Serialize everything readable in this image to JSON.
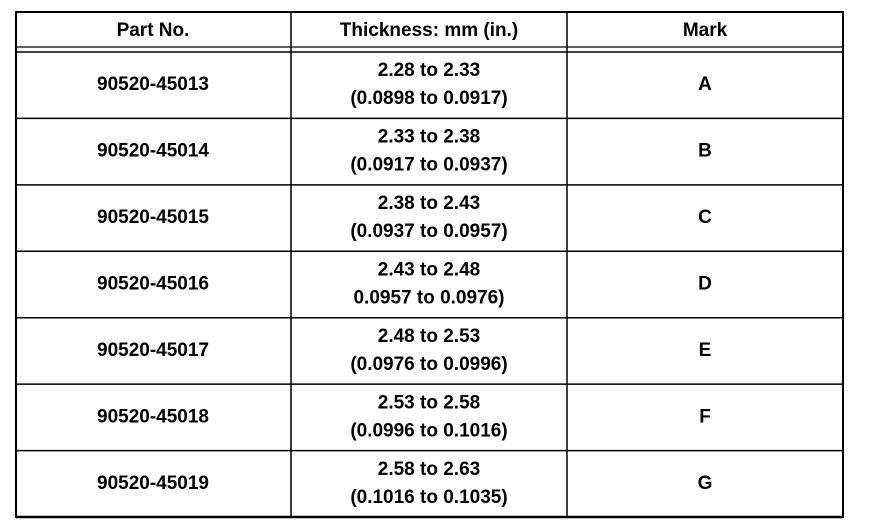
{
  "table": {
    "headers": [
      "Part No.",
      "Thickness: mm (in.)",
      "Mark"
    ],
    "rows": [
      {
        "part": "90520-45013",
        "thickness_mm": "2.28 to 2.33",
        "thickness_in": "(0.0898 to 0.0917)",
        "mark": "A"
      },
      {
        "part": "90520-45014",
        "thickness_mm": "2.33 to 2.38",
        "thickness_in": "(0.0917 to 0.0937)",
        "mark": "B"
      },
      {
        "part": "90520-45015",
        "thickness_mm": "2.38 to 2.43",
        "thickness_in": "(0.0937 to 0.0957)",
        "mark": "C"
      },
      {
        "part": "90520-45016",
        "thickness_mm": "2.43 to 2.48",
        "thickness_in": "0.0957 to 0.0976)",
        "mark": "D"
      },
      {
        "part": "90520-45017",
        "thickness_mm": "2.48 to 2.53",
        "thickness_in": "(0.0976 to 0.0996)",
        "mark": "E"
      },
      {
        "part": "90520-45018",
        "thickness_mm": "2.53 to 2.58",
        "thickness_in": "(0.0996 to 0.1016)",
        "mark": "F"
      },
      {
        "part": "90520-45019",
        "thickness_mm": "2.58 to 2.63",
        "thickness_in": "(0.1016 to 0.1035)",
        "mark": "G"
      }
    ]
  }
}
